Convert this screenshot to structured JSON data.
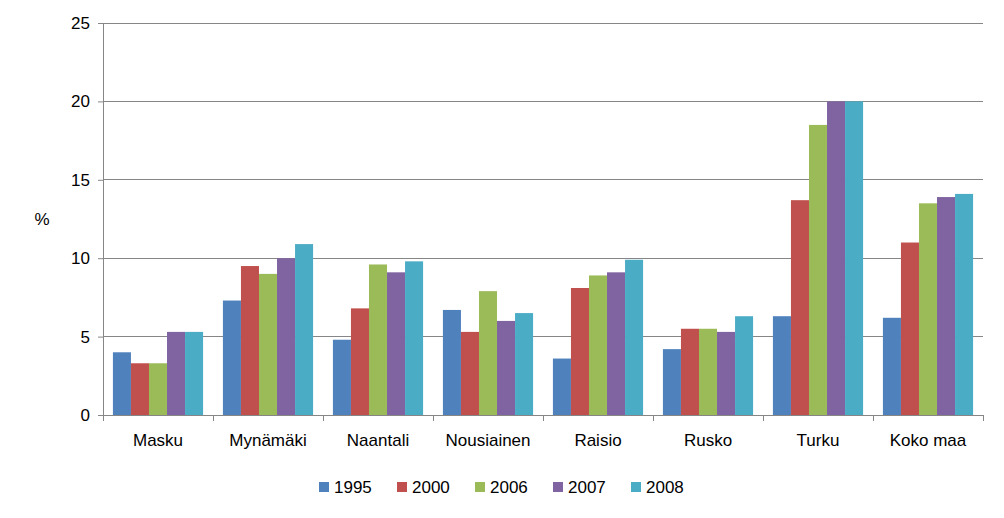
{
  "chart_data": {
    "type": "bar",
    "y_label": "%",
    "categories": [
      "Masku",
      "Mynämäki",
      "Naantali",
      "Nousiainen",
      "Raisio",
      "Rusko",
      "Turku",
      "Koko maa"
    ],
    "series": [
      {
        "name": "1995",
        "color": "#4f81bd",
        "values": [
          4.0,
          7.3,
          4.8,
          6.7,
          3.6,
          4.2,
          6.3,
          6.2
        ]
      },
      {
        "name": "2000",
        "color": "#c0504d",
        "values": [
          3.3,
          9.5,
          6.8,
          5.3,
          8.1,
          5.5,
          13.7,
          11.0
        ]
      },
      {
        "name": "2006",
        "color": "#9bbb59",
        "values": [
          3.3,
          9.0,
          9.6,
          7.9,
          8.9,
          5.5,
          18.5,
          13.5
        ]
      },
      {
        "name": "2007",
        "color": "#8064a2",
        "values": [
          5.3,
          10.0,
          9.1,
          6.0,
          9.1,
          5.3,
          20.0,
          13.9
        ]
      },
      {
        "name": "2008",
        "color": "#4bacc6",
        "values": [
          5.3,
          10.9,
          9.8,
          6.5,
          9.9,
          6.3,
          20.0,
          14.1
        ]
      }
    ],
    "ylim": [
      0,
      25
    ],
    "yticks": [
      0,
      5,
      10,
      15,
      20,
      25
    ],
    "grid": true,
    "legend": "bottom"
  }
}
